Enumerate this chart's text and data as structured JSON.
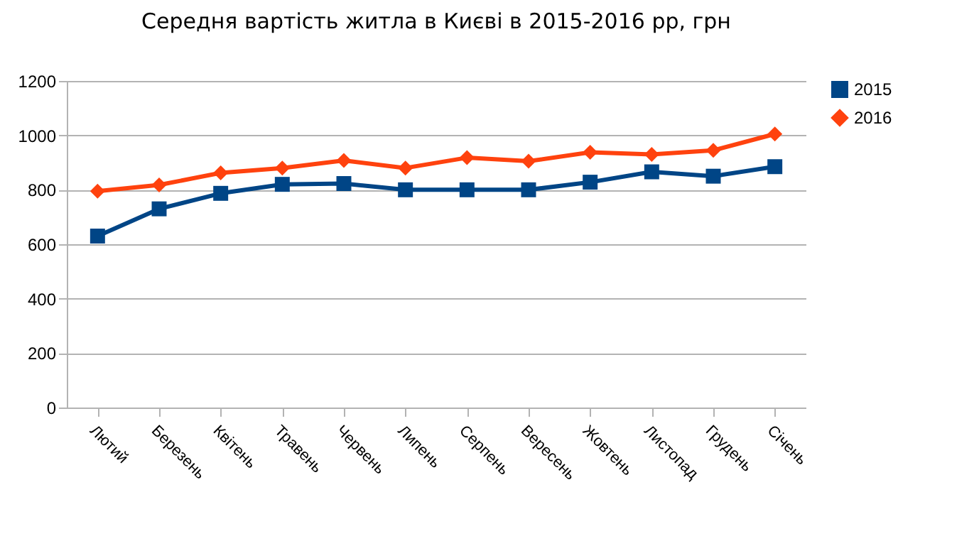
{
  "chart_data": {
    "type": "line",
    "title": "Середня вартість житла в Києві в 2015-2016 рр, грн",
    "categories": [
      "Лютий",
      "Березень",
      "Квітень",
      "Травень",
      "Червень",
      "Липень",
      "Серпень",
      "Вересень",
      "Жовтень",
      "Листопад",
      "Грудень",
      "Січень"
    ],
    "series": [
      {
        "name": "2015",
        "color": "#004586",
        "marker": "square",
        "values": [
          630,
          730,
          787,
          820,
          823,
          800,
          800,
          800,
          828,
          866,
          850,
          885
        ]
      },
      {
        "name": "2016",
        "color": "#ff420e",
        "marker": "diamond",
        "values": [
          795,
          818,
          862,
          880,
          908,
          880,
          918,
          905,
          938,
          930,
          945,
          1005
        ]
      }
    ],
    "ylim": [
      0,
      1200
    ],
    "yticks": [
      0,
      200,
      400,
      600,
      800,
      1000,
      1200
    ],
    "grid": "y",
    "legend": "right"
  }
}
